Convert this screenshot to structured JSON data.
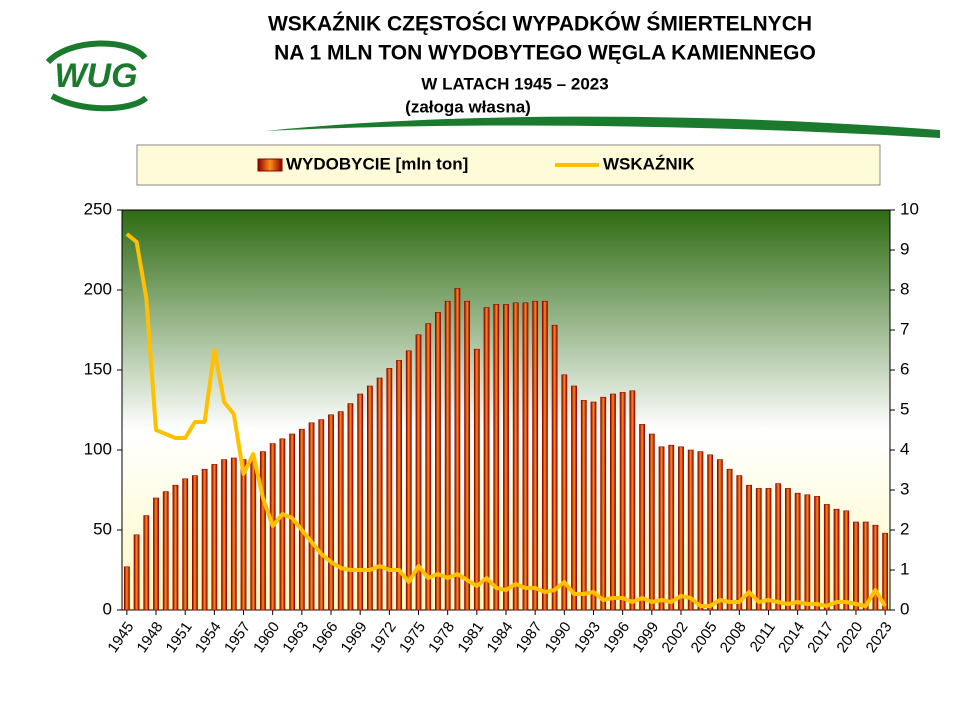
{
  "chart_data": {
    "type": "bar_line",
    "logo": "WUG",
    "title_lines": [
      "WSKAŹNIK CZĘSTOŚCI WYPADKÓW ŚMIERTELNYCH",
      "NA 1 MLN TON WYDOBYTEGO WĘGLA KAMIENNEGO",
      "W LATACH  1945 – 2023",
      "(załoga własna)"
    ],
    "categories": [
      "1945",
      null,
      null,
      "1948",
      null,
      null,
      "1951",
      null,
      null,
      "1954",
      null,
      null,
      "1957",
      null,
      null,
      "1960",
      null,
      null,
      "1963",
      null,
      null,
      "1966",
      null,
      null,
      "1969",
      null,
      null,
      "1972",
      null,
      null,
      "1975",
      null,
      null,
      "1978",
      null,
      null,
      "1981",
      null,
      null,
      "1984",
      null,
      null,
      "1987",
      null,
      null,
      "1990",
      null,
      null,
      "1993",
      null,
      null,
      "1996",
      null,
      null,
      "1999",
      null,
      null,
      "2002",
      null,
      null,
      "2005",
      null,
      null,
      "2008",
      null,
      null,
      "2011",
      null,
      null,
      "2014",
      null,
      null,
      "2017",
      null,
      null,
      "2020",
      null,
      null,
      "2023"
    ],
    "series": [
      {
        "name": "WYDOBYCIE [mln ton]",
        "kind": "bar",
        "axis": "y",
        "color": "#8b0000",
        "highlight": "#ff8c1a",
        "values": [
          27,
          47,
          59,
          70,
          74,
          78,
          82,
          84,
          88,
          91,
          94,
          95,
          94,
          95,
          99,
          104,
          107,
          110,
          113,
          117,
          119,
          122,
          124,
          129,
          135,
          140,
          145,
          151,
          156,
          162,
          172,
          179,
          186,
          193,
          201,
          193,
          163,
          189,
          191,
          191,
          192,
          192,
          193,
          193,
          178,
          147,
          140,
          131,
          130,
          133,
          135,
          136,
          137,
          116,
          110,
          102,
          103,
          102,
          100,
          99,
          97,
          94,
          88,
          84,
          78,
          76,
          76,
          79,
          76,
          73,
          72,
          71,
          66,
          63,
          62,
          55,
          55,
          53,
          48
        ]
      },
      {
        "name": "WSKAŹNIK",
        "kind": "line",
        "axis": "y2",
        "color": "#ffc000",
        "values": [
          9.4,
          9.2,
          7.8,
          4.5,
          4.4,
          4.3,
          4.3,
          4.7,
          4.7,
          6.5,
          5.2,
          4.9,
          3.4,
          3.9,
          2.8,
          2.1,
          2.4,
          2.3,
          2.0,
          1.7,
          1.4,
          1.2,
          1.05,
          1.0,
          1.0,
          1.0,
          1.1,
          1.0,
          1.0,
          0.7,
          1.1,
          0.8,
          0.9,
          0.8,
          0.9,
          0.75,
          0.6,
          0.8,
          0.55,
          0.5,
          0.65,
          0.55,
          0.55,
          0.45,
          0.5,
          0.7,
          0.4,
          0.4,
          0.45,
          0.25,
          0.3,
          0.3,
          0.2,
          0.3,
          0.2,
          0.25,
          0.2,
          0.35,
          0.3,
          0.1,
          0.1,
          0.25,
          0.2,
          0.2,
          0.45,
          0.2,
          0.25,
          0.2,
          0.15,
          0.2,
          0.15,
          0.15,
          0.1,
          0.2,
          0.2,
          0.15,
          0.1,
          0.5,
          0.1
        ]
      }
    ],
    "ylim": [
      0,
      250
    ],
    "yticks": [
      0,
      50,
      100,
      150,
      200,
      250
    ],
    "y2lim": [
      0,
      10
    ],
    "y2ticks": [
      0,
      1,
      2,
      3,
      4,
      5,
      6,
      7,
      8,
      9,
      10
    ],
    "grid": false
  }
}
